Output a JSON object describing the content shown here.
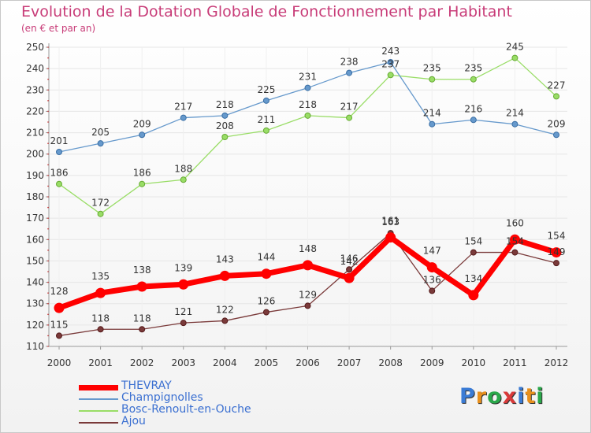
{
  "title": "Evolution de la Dotation Globale de Fonctionnement par Habitant",
  "subtitle": "(en € et par an)",
  "logo": {
    "text": "Proxiti",
    "colors": [
      "#3a7bd5",
      "#e8901c",
      "#2aa84a",
      "#d93a3a",
      "#3a7bd5",
      "#e8901c",
      "#2aa84a"
    ]
  },
  "chart_data": {
    "type": "line",
    "x": [
      "2000",
      "2001",
      "2002",
      "2003",
      "2004",
      "2005",
      "2006",
      "2007",
      "2008",
      "2009",
      "2010",
      "2011",
      "2012"
    ],
    "ylim": [
      110,
      250
    ],
    "yticks": [
      110,
      120,
      130,
      140,
      150,
      160,
      170,
      180,
      190,
      200,
      210,
      220,
      230,
      240,
      250
    ],
    "grid": true,
    "legend_position": "bottom-left",
    "series": [
      {
        "name": "THEVRAY",
        "color": "#ff0000",
        "values": [
          128,
          135,
          138,
          139,
          143,
          144,
          148,
          142,
          161,
          147,
          134,
          160,
          154
        ],
        "labels": [
          "128",
          "135",
          "138",
          "139",
          "143",
          "144",
          "148",
          "142",
          "161",
          "147",
          "134",
          "160",
          "154"
        ]
      },
      {
        "name": "Champignolles",
        "color": "#6699cc",
        "values": [
          201,
          205,
          209,
          217,
          218,
          225,
          231,
          238,
          243,
          214,
          216,
          214,
          209
        ],
        "labels": [
          "201",
          "205",
          "209",
          "217",
          "218",
          "225",
          "231",
          "238",
          "243",
          "214",
          "216",
          "214",
          "209"
        ]
      },
      {
        "name": "Bosc-Renoult-en-Ouche",
        "color": "#99dd66",
        "values": [
          186,
          172,
          186,
          188,
          208,
          211,
          218,
          217,
          237,
          235,
          235,
          245,
          227
        ],
        "labels": [
          "186",
          "172",
          "186",
          "188",
          "208",
          "211",
          "218",
          "217",
          "237",
          "235",
          "235",
          "245",
          "227"
        ]
      },
      {
        "name": "Ajou",
        "color": "#7a3a3a",
        "values": [
          115,
          118,
          118,
          121,
          122,
          126,
          129,
          146,
          163,
          136,
          154,
          154,
          149
        ],
        "labels": [
          "115",
          "118",
          "118",
          "121",
          "122",
          "126",
          "129",
          "146",
          "163",
          "136",
          "154",
          "154",
          "149"
        ]
      }
    ]
  }
}
